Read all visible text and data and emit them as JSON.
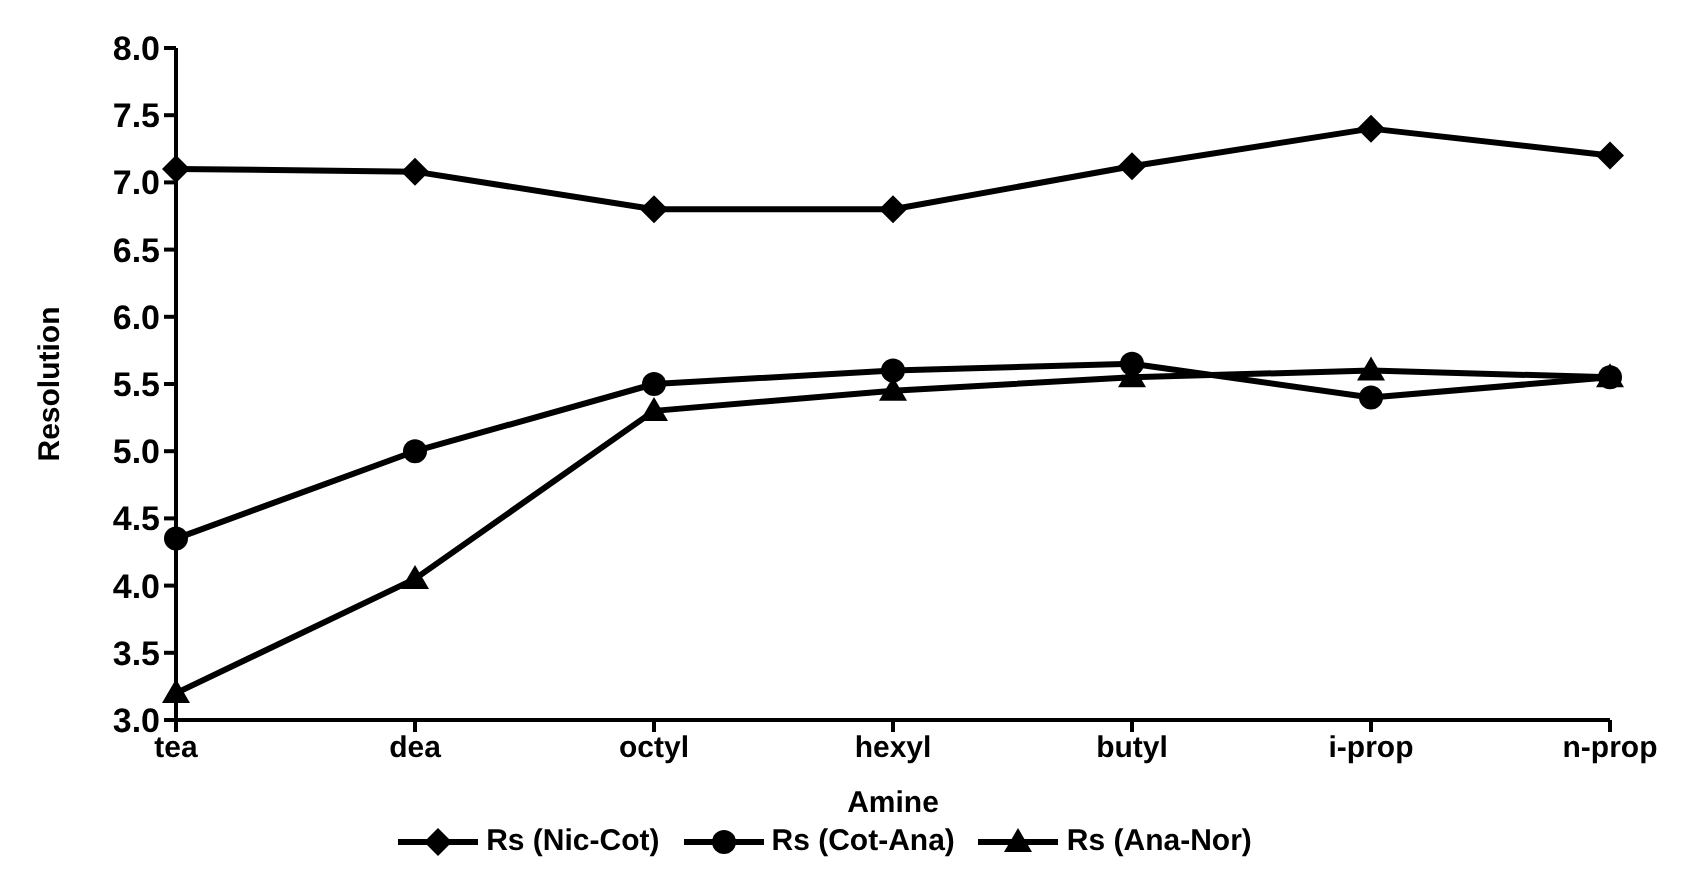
{
  "chart_data": {
    "type": "line",
    "xlabel": "Amine",
    "ylabel": "Resolution",
    "categories": [
      "tea",
      "dea",
      "octyl",
      "hexyl",
      "butyl",
      "i-prop",
      "n-prop"
    ],
    "series": [
      {
        "name": "Rs (Nic-Cot)",
        "color": "#000000",
        "marker": "diamond",
        "values": [
          7.1,
          7.08,
          6.8,
          6.8,
          7.12,
          7.4,
          7.2
        ]
      },
      {
        "name": "Rs (Cot-Ana)",
        "color": "#000000",
        "marker": "circle",
        "values": [
          4.35,
          5.0,
          5.5,
          5.6,
          5.65,
          5.4,
          5.55
        ]
      },
      {
        "name": "Rs (Ana-Nor)",
        "color": "#000000",
        "marker": "triangle",
        "values": [
          3.2,
          4.05,
          5.3,
          5.45,
          5.55,
          5.6,
          5.55
        ]
      }
    ],
    "ylim": [
      3.0,
      8.0
    ],
    "yticks": [
      {
        "value": 3,
        "label": "3.0"
      },
      {
        "value": 3.5,
        "label": "3.5"
      },
      {
        "value": 4,
        "label": "4.0"
      },
      {
        "value": 4.5,
        "label": "4.5"
      },
      {
        "value": 5,
        "label": "5.0"
      },
      {
        "value": 5.5,
        "label": "5.5"
      },
      {
        "value": 6,
        "label": "6.0"
      },
      {
        "value": 6.5,
        "label": "6.5"
      },
      {
        "value": 7,
        "label": "7.0"
      },
      {
        "value": 7.5,
        "label": "7.5"
      },
      {
        "value": 8,
        "label": "8.0"
      }
    ],
    "grid": false,
    "legend": "bottom",
    "line_style": "solid"
  }
}
